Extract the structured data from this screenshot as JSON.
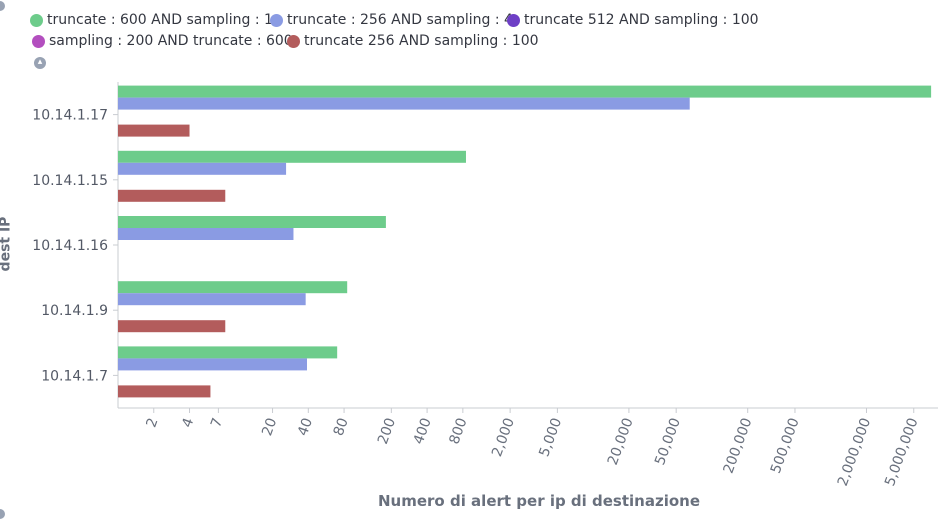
{
  "chart_data": {
    "type": "bar",
    "orientation": "horizontal",
    "title": "",
    "xlabel": "Numero di alert per ip di destinazione",
    "ylabel": "dest IP",
    "x_scale": "log",
    "xlim": [
      1,
      8000000
    ],
    "x_ticks": [
      {
        "value": 2,
        "label": "2"
      },
      {
        "value": 4,
        "label": "4"
      },
      {
        "value": 7,
        "label": "7"
      },
      {
        "value": 20,
        "label": "20"
      },
      {
        "value": 40,
        "label": "40"
      },
      {
        "value": 80,
        "label": "80"
      },
      {
        "value": 200,
        "label": "200"
      },
      {
        "value": 400,
        "label": "400"
      },
      {
        "value": 800,
        "label": "800"
      },
      {
        "value": 2000,
        "label": "2,000"
      },
      {
        "value": 5000,
        "label": "5,000"
      },
      {
        "value": 20000,
        "label": "20,000"
      },
      {
        "value": 50000,
        "label": "50,000"
      },
      {
        "value": 200000,
        "label": "200,000"
      },
      {
        "value": 500000,
        "label": "500,000"
      },
      {
        "value": 2000000,
        "label": "2,000,000"
      },
      {
        "value": 5000000,
        "label": "5,000,000"
      }
    ],
    "categories": [
      "10.14.1.17",
      "10.14.1.15",
      "10.14.1.16",
      "10.14.1.9",
      "10.14.1.7"
    ],
    "series": [
      {
        "name": "truncate : 600 AND sampling : 1",
        "color": "#6dcc8b",
        "values": [
          7000000,
          850,
          180,
          85,
          70
        ]
      },
      {
        "name": "truncate : 256 AND sampling : 4",
        "color": "#8a9be3",
        "values": [
          65000,
          26,
          30,
          38,
          39
        ]
      },
      {
        "name": "truncate 512 AND sampling : 100",
        "color": "#6e3fc6",
        "values": [
          null,
          null,
          null,
          null,
          null
        ]
      },
      {
        "name": "sampling : 200 AND truncate : 600",
        "color": "#b34fbf",
        "values": [
          null,
          null,
          null,
          null,
          null
        ]
      },
      {
        "name": "truncate 256 AND sampling : 100",
        "color": "#b35c5c",
        "values": [
          4,
          8,
          null,
          8,
          6
        ]
      }
    ],
    "legend_position": "top",
    "grid": false
  }
}
